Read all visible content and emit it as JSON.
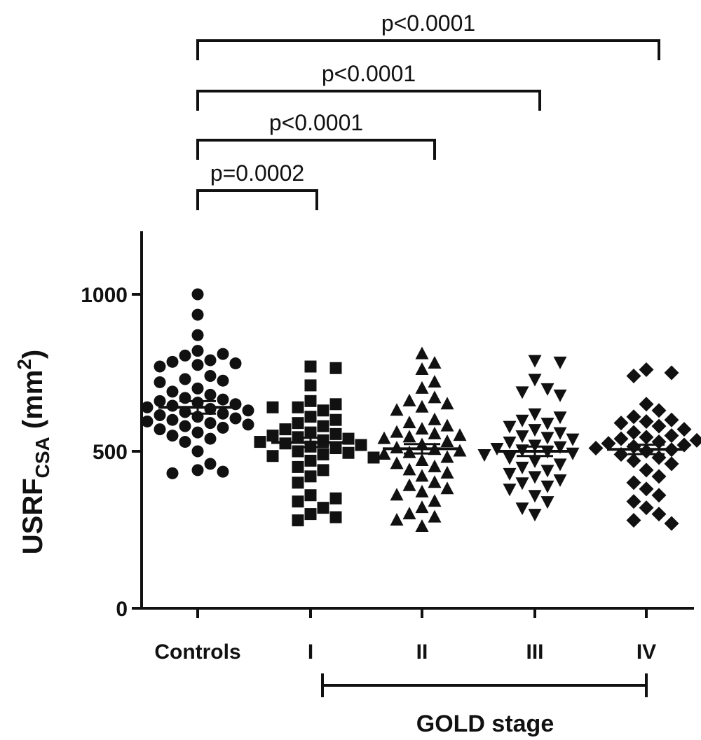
{
  "chart_data": {
    "type": "scatter",
    "title": "",
    "xlabel": "",
    "ylabel": {
      "main": "USRF",
      "sub": "CSA",
      "unit_open": " (mm",
      "unit_sup": "2",
      "unit_close": ")"
    },
    "ylim": [
      0,
      1200
    ],
    "yticks": [
      0,
      500,
      1000
    ],
    "categories": [
      "Controls",
      "I",
      "II",
      "III",
      "IV"
    ],
    "grid": false,
    "marker_color": "#111111",
    "series": [
      {
        "category": "Controls",
        "marker": "circle",
        "mean": 640,
        "sem": 20,
        "values": [
          1000,
          935,
          870,
          820,
          810,
          805,
          790,
          785,
          780,
          775,
          770,
          740,
          730,
          725,
          720,
          700,
          690,
          680,
          670,
          665,
          660,
          655,
          650,
          645,
          640,
          635,
          630,
          625,
          620,
          615,
          610,
          605,
          600,
          595,
          590,
          585,
          580,
          575,
          570,
          560,
          550,
          540,
          530,
          500,
          460,
          440,
          435,
          430
        ]
      },
      {
        "category": "I",
        "marker": "square",
        "mean": 528,
        "sem": 15,
        "values": [
          770,
          765,
          710,
          640,
          660,
          650,
          640,
          630,
          600,
          610,
          590,
          580,
          570,
          560,
          555,
          550,
          545,
          540,
          535,
          530,
          525,
          520,
          515,
          510,
          500,
          495,
          490,
          485,
          480,
          470,
          450,
          440,
          420,
          400,
          360,
          350,
          340,
          320,
          300,
          290,
          280
        ]
      },
      {
        "category": "II",
        "marker": "triangle-up",
        "mean": 508,
        "sem": 15,
        "values": [
          810,
          780,
          760,
          720,
          700,
          670,
          660,
          650,
          640,
          630,
          600,
          590,
          580,
          570,
          560,
          555,
          550,
          545,
          540,
          530,
          520,
          510,
          505,
          500,
          495,
          490,
          480,
          470,
          460,
          450,
          440,
          430,
          420,
          400,
          390,
          380,
          370,
          360,
          340,
          320,
          300,
          290,
          280,
          260
        ]
      },
      {
        "category": "III",
        "marker": "triangle-down",
        "mean": 500,
        "sem": 15,
        "values": [
          790,
          785,
          730,
          700,
          690,
          680,
          620,
          610,
          600,
          590,
          580,
          570,
          560,
          550,
          545,
          540,
          530,
          520,
          515,
          510,
          505,
          500,
          495,
          490,
          480,
          470,
          460,
          450,
          440,
          430,
          420,
          410,
          400,
          390,
          380,
          360,
          340,
          320,
          300
        ]
      },
      {
        "category": "IV",
        "marker": "diamond",
        "mean": 506,
        "sem": 15,
        "values": [
          760,
          750,
          740,
          650,
          630,
          610,
          600,
          595,
          590,
          580,
          570,
          560,
          550,
          545,
          540,
          535,
          530,
          525,
          520,
          515,
          510,
          505,
          500,
          490,
          480,
          470,
          460,
          440,
          420,
          400,
          380,
          360,
          340,
          320,
          300,
          280,
          270
        ]
      }
    ],
    "comparisons": [
      {
        "from": "Controls",
        "to": "I",
        "label": "p=0.0002"
      },
      {
        "from": "Controls",
        "to": "II",
        "label": "p<0.0001"
      },
      {
        "from": "Controls",
        "to": "III",
        "label": "p<0.0001"
      },
      {
        "from": "Controls",
        "to": "IV",
        "label": "p<0.0001"
      }
    ],
    "group_bracket": {
      "from": "I",
      "to": "IV",
      "label": "GOLD stage"
    }
  }
}
